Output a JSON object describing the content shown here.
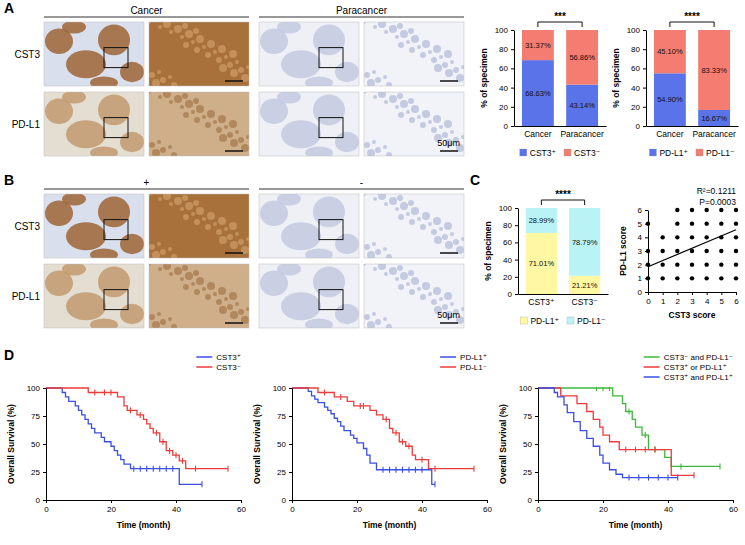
{
  "panel_labels": [
    "A",
    "B",
    "C",
    "D"
  ],
  "micrographs": [
    {
      "column_heads": [
        "Cancer",
        "Paracancer"
      ],
      "row_labels": [
        "CST3",
        "PD-L1"
      ],
      "scale_bar": "50μm"
    },
    {
      "column_heads": [
        "+",
        "-"
      ],
      "row_labels": [
        "CST3",
        "PD-L1"
      ],
      "scale_bar": "50μm"
    }
  ],
  "chart_data": [
    {
      "type": "bar",
      "stacked": true,
      "data_labels": true,
      "legend": "bottom",
      "significance": "***",
      "y_label": "% of specimen",
      "categories": [
        "Cancer",
        "Paracancer"
      ],
      "ylim": [
        0,
        100
      ],
      "yticks": [
        0,
        20,
        40,
        60,
        80,
        100
      ],
      "series": [
        {
          "name": "CST3⁺",
          "color": "#5b73e8",
          "values": [
            68.63,
            43.14
          ],
          "value_labels": [
            "68.63%",
            "43.14%"
          ]
        },
        {
          "name": "CST3⁻",
          "color": "#f47c70",
          "values": [
            31.37,
            56.86
          ],
          "value_labels": [
            "31.37%",
            "56.86%"
          ]
        }
      ]
    },
    {
      "type": "bar",
      "stacked": true,
      "data_labels": true,
      "legend": "bottom",
      "significance": "****",
      "y_label": "% of specimen",
      "categories": [
        "Cancer",
        "Paracancer"
      ],
      "ylim": [
        0,
        100
      ],
      "yticks": [
        0,
        20,
        40,
        60,
        80,
        100
      ],
      "series": [
        {
          "name": "PD-L1⁺",
          "color": "#5b73e8",
          "values": [
            54.9,
            16.67
          ],
          "value_labels": [
            "54.90%",
            "16.67%"
          ]
        },
        {
          "name": "PD-L1⁻",
          "color": "#f47c70",
          "values": [
            45.1,
            83.33
          ],
          "value_labels": [
            "45.10%",
            "83.33%"
          ]
        }
      ]
    },
    {
      "type": "bar",
      "stacked": true,
      "data_labels": true,
      "legend": "bottom",
      "significance": "****",
      "y_label": "% of specimen",
      "categories": [
        "CST3⁺",
        "CST3⁻"
      ],
      "ylim": [
        0,
        100
      ],
      "yticks": [
        0,
        20,
        40,
        60,
        80,
        100
      ],
      "series": [
        {
          "name": "PD-L1⁺",
          "color": "#fff7a1",
          "values": [
            71.01,
            21.21
          ],
          "value_labels": [
            "71.01%",
            "21.21%"
          ]
        },
        {
          "name": "PD-L1⁻",
          "color": "#b9f3f6",
          "values": [
            28.99,
            78.79
          ],
          "value_labels": [
            "28.99%",
            "78.79%"
          ]
        }
      ]
    },
    {
      "type": "scatter",
      "x_label": "CST3 score",
      "y_label": "PD-L1 score",
      "annotations": [
        "R²=0.1211",
        "P=0.0003"
      ],
      "xlim": [
        0,
        6
      ],
      "xticks": [
        0,
        1,
        2,
        3,
        4,
        5,
        6
      ],
      "ylim": [
        0,
        6
      ],
      "yticks": [
        0,
        1,
        2,
        3,
        4,
        5,
        6
      ],
      "series": [
        {
          "type": "scatter",
          "color": "#000000",
          "marker": "circle",
          "x": [
            2,
            3,
            4,
            5,
            6,
            0,
            2,
            3,
            4,
            5,
            6,
            1,
            2,
            3,
            4,
            5,
            6,
            0,
            1,
            2,
            3,
            4,
            5,
            6,
            0,
            1,
            2,
            3,
            4,
            5,
            6,
            0,
            1,
            2,
            3,
            4,
            5,
            6
          ],
          "values": [
            6,
            6,
            6,
            6,
            6,
            5,
            5,
            5,
            5,
            5,
            5,
            4,
            4,
            4,
            4,
            4,
            4,
            3,
            3,
            3,
            3,
            3,
            3,
            3,
            2,
            2,
            2,
            2,
            2,
            2,
            2,
            1,
            1,
            1,
            1,
            1,
            1,
            1
          ]
        },
        {
          "type": "line",
          "color": "#000000",
          "line_style": "solid",
          "x": [
            0,
            6
          ],
          "values": [
            1.85,
            4.55
          ]
        }
      ]
    },
    {
      "type": "line",
      "line_style": "step",
      "legend": "top right",
      "x_label": "Time (month)",
      "y_label": "Overall Survival (%)",
      "xlim": [
        0,
        60
      ],
      "xticks": [
        0,
        20,
        40,
        60
      ],
      "ylim": [
        0,
        100
      ],
      "yticks": [
        0,
        25,
        50,
        75,
        100
      ],
      "series": [
        {
          "name": "CST3⁺",
          "color": "#3b4fe4",
          "x": [
            0,
            5,
            6,
            7,
            9,
            10,
            11,
            12,
            13,
            14,
            15,
            17,
            18,
            20,
            21,
            22,
            23,
            24,
            26,
            41,
            48
          ],
          "values": [
            100,
            96,
            92,
            88,
            84,
            80,
            76,
            72,
            68,
            64,
            60,
            56,
            52,
            48,
            44,
            40,
            36,
            32,
            28,
            14,
            14
          ],
          "censor_x": [
            27,
            29,
            31,
            33,
            35,
            37,
            39,
            48
          ],
          "censor_values": [
            28,
            28,
            28,
            28,
            28,
            28,
            28,
            14
          ]
        },
        {
          "name": "CST3⁻",
          "color": "#ee3b3b",
          "x": [
            0,
            13,
            22,
            24,
            25,
            28,
            30,
            31,
            32,
            33,
            35,
            37,
            39,
            41,
            43,
            56
          ],
          "values": [
            100,
            96,
            92,
            84,
            80,
            76,
            72,
            68,
            64,
            60,
            52,
            44,
            40,
            35,
            28,
            28
          ],
          "censor_x": [
            15,
            18,
            20,
            26,
            29,
            34,
            36,
            38,
            40,
            42,
            46,
            56
          ],
          "censor_values": [
            96,
            96,
            96,
            80,
            76,
            60,
            52,
            44,
            40,
            35,
            28,
            28
          ]
        }
      ]
    },
    {
      "type": "line",
      "line_style": "step",
      "legend": "top right",
      "x_label": "Time (month)",
      "y_label": "Overall Survival (%)",
      "xlim": [
        0,
        60
      ],
      "xticks": [
        0,
        20,
        40,
        60
      ],
      "ylim": [
        0,
        100
      ],
      "yticks": [
        0,
        25,
        50,
        75,
        100
      ],
      "series": [
        {
          "name": "PD-L1⁺",
          "color": "#3b4fe4",
          "x": [
            0,
            5,
            6,
            7,
            8,
            10,
            11,
            12,
            13,
            14,
            15,
            16,
            18,
            19,
            20,
            22,
            23,
            24,
            26,
            43,
            44
          ],
          "values": [
            100,
            97,
            93,
            90,
            87,
            83,
            80,
            77,
            73,
            70,
            66,
            62,
            58,
            55,
            51,
            46,
            40,
            33,
            27,
            14,
            14
          ],
          "censor_x": [
            28,
            30,
            32,
            34,
            36,
            38,
            40,
            44
          ],
          "censor_values": [
            27,
            27,
            27,
            27,
            27,
            27,
            27,
            14
          ]
        },
        {
          "name": "PD-L1⁻",
          "color": "#ee3b3b",
          "x": [
            0,
            8,
            13,
            17,
            19,
            24,
            26,
            28,
            30,
            31,
            33,
            35,
            37,
            38,
            42,
            56
          ],
          "values": [
            100,
            96,
            92,
            88,
            84,
            80,
            76,
            72,
            64,
            60,
            52,
            48,
            40,
            36,
            28,
            28
          ],
          "censor_x": [
            10,
            15,
            21,
            22,
            29,
            32,
            34,
            36,
            40,
            44,
            56
          ],
          "censor_values": [
            96,
            92,
            84,
            84,
            72,
            60,
            52,
            48,
            36,
            28,
            28
          ]
        }
      ]
    },
    {
      "type": "line",
      "line_style": "step",
      "legend": "top right",
      "x_label": "Time (month)",
      "y_label": "Overall Survival (%)",
      "xlim": [
        0,
        60
      ],
      "xticks": [
        0,
        20,
        40,
        60
      ],
      "ylim": [
        0,
        100
      ],
      "yticks": [
        0,
        25,
        50,
        75,
        100
      ],
      "series": [
        {
          "name": "CST3⁻ and PD-L1⁻",
          "color": "#3cb93c",
          "x": [
            0,
            23,
            26,
            27,
            29,
            30,
            32,
            34,
            39,
            41,
            56
          ],
          "values": [
            100,
            93,
            86,
            79,
            72,
            65,
            58,
            45,
            38,
            30,
            30
          ],
          "censor_x": [
            18,
            20,
            22,
            28,
            33,
            36,
            44,
            56
          ],
          "censor_values": [
            100,
            100,
            100,
            79,
            58,
            45,
            30,
            30
          ]
        },
        {
          "name": "CST3⁺ or PD-L1⁺",
          "color": "#ee3b3b",
          "x": [
            0,
            7,
            12,
            15,
            17,
            19,
            20,
            22,
            25,
            41,
            48
          ],
          "values": [
            100,
            93,
            86,
            79,
            72,
            65,
            58,
            52,
            45,
            22,
            22
          ],
          "censor_x": [
            27,
            30,
            33,
            36,
            48
          ],
          "censor_values": [
            45,
            45,
            45,
            45,
            22
          ]
        },
        {
          "name": "CST3⁺ and PD-L1⁺",
          "color": "#3b4fe4",
          "x": [
            0,
            5,
            6,
            8,
            9,
            11,
            13,
            15,
            17,
            19,
            20,
            22,
            24,
            26,
            43
          ],
          "values": [
            100,
            96,
            92,
            85,
            78,
            70,
            62,
            55,
            48,
            40,
            33,
            27,
            23,
            20,
            20
          ],
          "censor_x": [
            28,
            31,
            34,
            37,
            40,
            43
          ],
          "censor_values": [
            20,
            20,
            20,
            20,
            20,
            20
          ]
        }
      ]
    }
  ]
}
